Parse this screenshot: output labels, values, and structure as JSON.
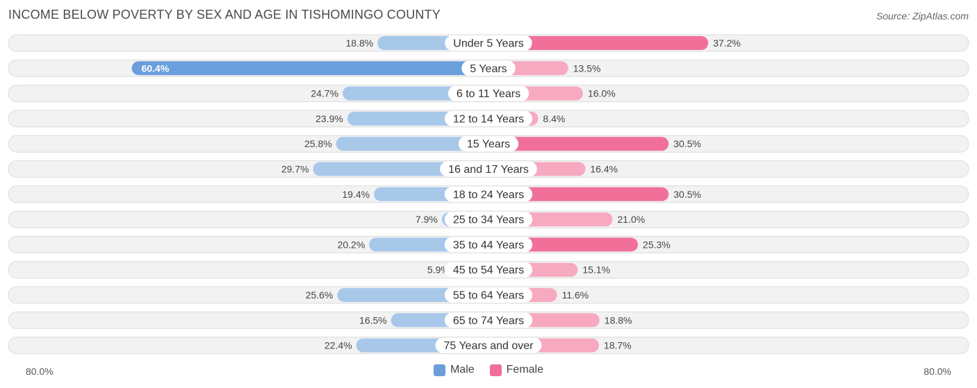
{
  "title": "INCOME BELOW POVERTY BY SEX AND AGE IN TISHOMINGO COUNTY",
  "source": "Source: ZipAtlas.com",
  "colors": {
    "male_strong": "#6a9fdc",
    "male_light": "#a8c8ea",
    "female_strong": "#f07099",
    "female_light": "#f7a9c0",
    "row_bg": "#f2f2f2",
    "row_border": "#dcdcdc"
  },
  "chart_data": {
    "type": "bar",
    "orientation": "diverging-horizontal",
    "title": "INCOME BELOW POVERTY BY SEX AND AGE IN TISHOMINGO COUNTY",
    "categories": [
      "Under 5 Years",
      "5 Years",
      "6 to 11 Years",
      "12 to 14 Years",
      "15 Years",
      "16 and 17 Years",
      "18 to 24 Years",
      "25 to 34 Years",
      "35 to 44 Years",
      "45 to 54 Years",
      "55 to 64 Years",
      "65 to 74 Years",
      "75 Years and over"
    ],
    "series": [
      {
        "name": "Male",
        "values": [
          18.8,
          60.4,
          24.7,
          23.9,
          25.8,
          29.7,
          19.4,
          7.9,
          20.2,
          5.9,
          25.6,
          16.5,
          22.4
        ],
        "labels": [
          "18.8%",
          "60.4%",
          "24.7%",
          "23.9%",
          "25.8%",
          "29.7%",
          "19.4%",
          "7.9%",
          "20.2%",
          "5.9%",
          "25.6%",
          "16.5%",
          "22.4%"
        ]
      },
      {
        "name": "Female",
        "values": [
          37.2,
          13.5,
          16.0,
          8.4,
          30.5,
          16.4,
          30.5,
          21.0,
          25.3,
          15.1,
          11.6,
          18.8,
          18.7
        ],
        "labels": [
          "37.2%",
          "13.5%",
          "16.0%",
          "8.4%",
          "30.5%",
          "16.4%",
          "30.5%",
          "21.0%",
          "25.3%",
          "15.1%",
          "11.6%",
          "18.8%",
          "18.7%"
        ]
      }
    ],
    "xlim": [
      -80,
      80
    ],
    "axis_left_label": "80.0%",
    "axis_right_label": "80.0%",
    "legend": [
      "Male",
      "Female"
    ],
    "legend_position": "bottom-center"
  }
}
